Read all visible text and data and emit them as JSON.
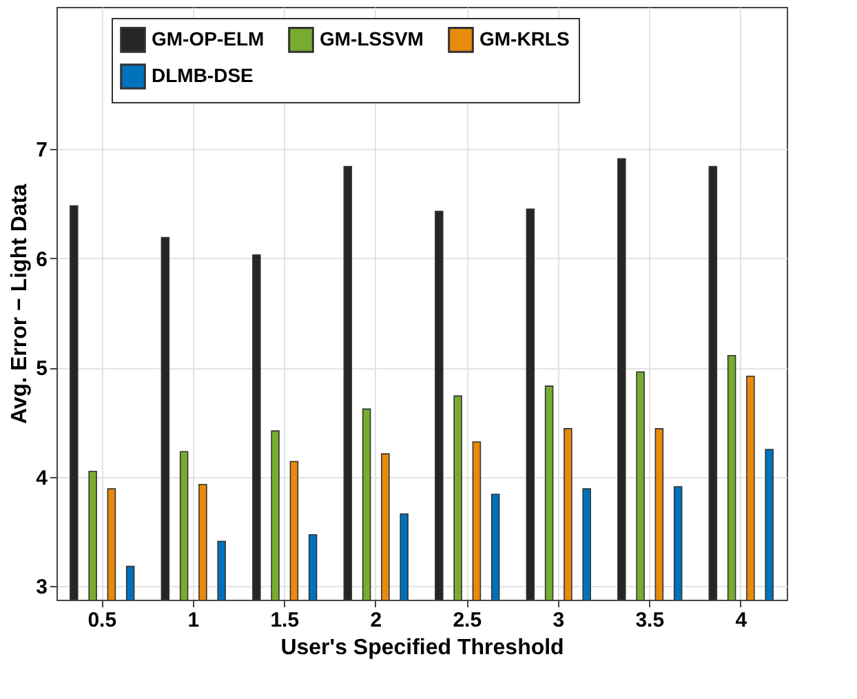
{
  "chart_data": {
    "type": "bar",
    "xlabel": "User's Specified Threshold",
    "ylabel": "Avg. Error − Light Data",
    "categories": [
      "0.5",
      "1",
      "1.5",
      "2",
      "2.5",
      "3",
      "3.5",
      "4"
    ],
    "series": [
      {
        "name": "GM-OP-ELM",
        "color": "#262626",
        "values": [
          6.48,
          6.19,
          6.03,
          6.84,
          6.43,
          6.45,
          6.91,
          6.84
        ]
      },
      {
        "name": "GM-LSSVM",
        "color": "#77ac30",
        "values": [
          4.05,
          4.23,
          4.42,
          4.62,
          4.74,
          4.83,
          4.96,
          5.11
        ]
      },
      {
        "name": "GM-KRLS",
        "color": "#ea8a0b",
        "values": [
          3.89,
          3.93,
          4.14,
          4.21,
          4.32,
          4.44,
          4.44,
          4.92
        ]
      },
      {
        "name": "DLMB-DSE",
        "color": "#0072bd",
        "values": [
          3.18,
          3.41,
          3.47,
          3.66,
          3.84,
          3.89,
          3.91,
          4.25
        ]
      }
    ],
    "ylim": [
      2.875,
      8.3
    ],
    "yticks": [
      3,
      4,
      5,
      6,
      7
    ],
    "grid": true,
    "legend": "top"
  }
}
